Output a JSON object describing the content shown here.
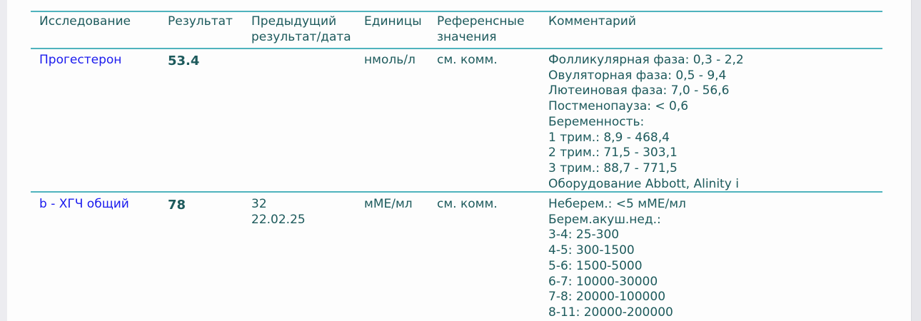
{
  "header": {
    "columns": [
      "Исследование",
      "Результат",
      "Предыдущий результат/дата",
      "Единицы",
      "Референсные значения",
      "Комментарий"
    ],
    "col3_lines": [
      "Предыдущий",
      "результат/дата"
    ],
    "col5_lines": [
      "Референсные",
      "значения"
    ]
  },
  "rows": [
    {
      "test": "Прогестерон",
      "result": "53.4",
      "previous_result": "",
      "previous_date": "",
      "units": "нмоль/л",
      "reference": "см. комм.",
      "comment": [
        "Фолликулярная фаза: 0,3 - 2,2",
        "Овуляторная фаза: 0,5 - 9,4",
        "Лютеиновая фаза: 7,0 - 56,6",
        "Постменопауза: < 0,6",
        "Беременность:",
        "1 трим.: 8,9 - 468,4",
        "2 трим.: 71,5 - 303,1",
        "3 трим.: 88,7 - 771,5",
        "Оборудование Abbott, Alinity i"
      ]
    },
    {
      "test": "b - ХГЧ общий",
      "result": "78",
      "previous_result": "32",
      "previous_date": "22.02.25",
      "units": "мМЕ/мл",
      "reference": "см. комм.",
      "comment": [
        "Неберем.: <5 мМЕ/мл",
        "Берем.акуш.нед.:",
        "3-4: 25-300",
        "4-5: 300-1500",
        "5-6: 1500-5000",
        "6-7: 10000-30000",
        "7-8: 20000-100000",
        "8-11: 20000-200000"
      ]
    }
  ],
  "colors": {
    "text": "#1d5a5c",
    "link": "#1a1aee",
    "rule": "#4fb3bd"
  }
}
